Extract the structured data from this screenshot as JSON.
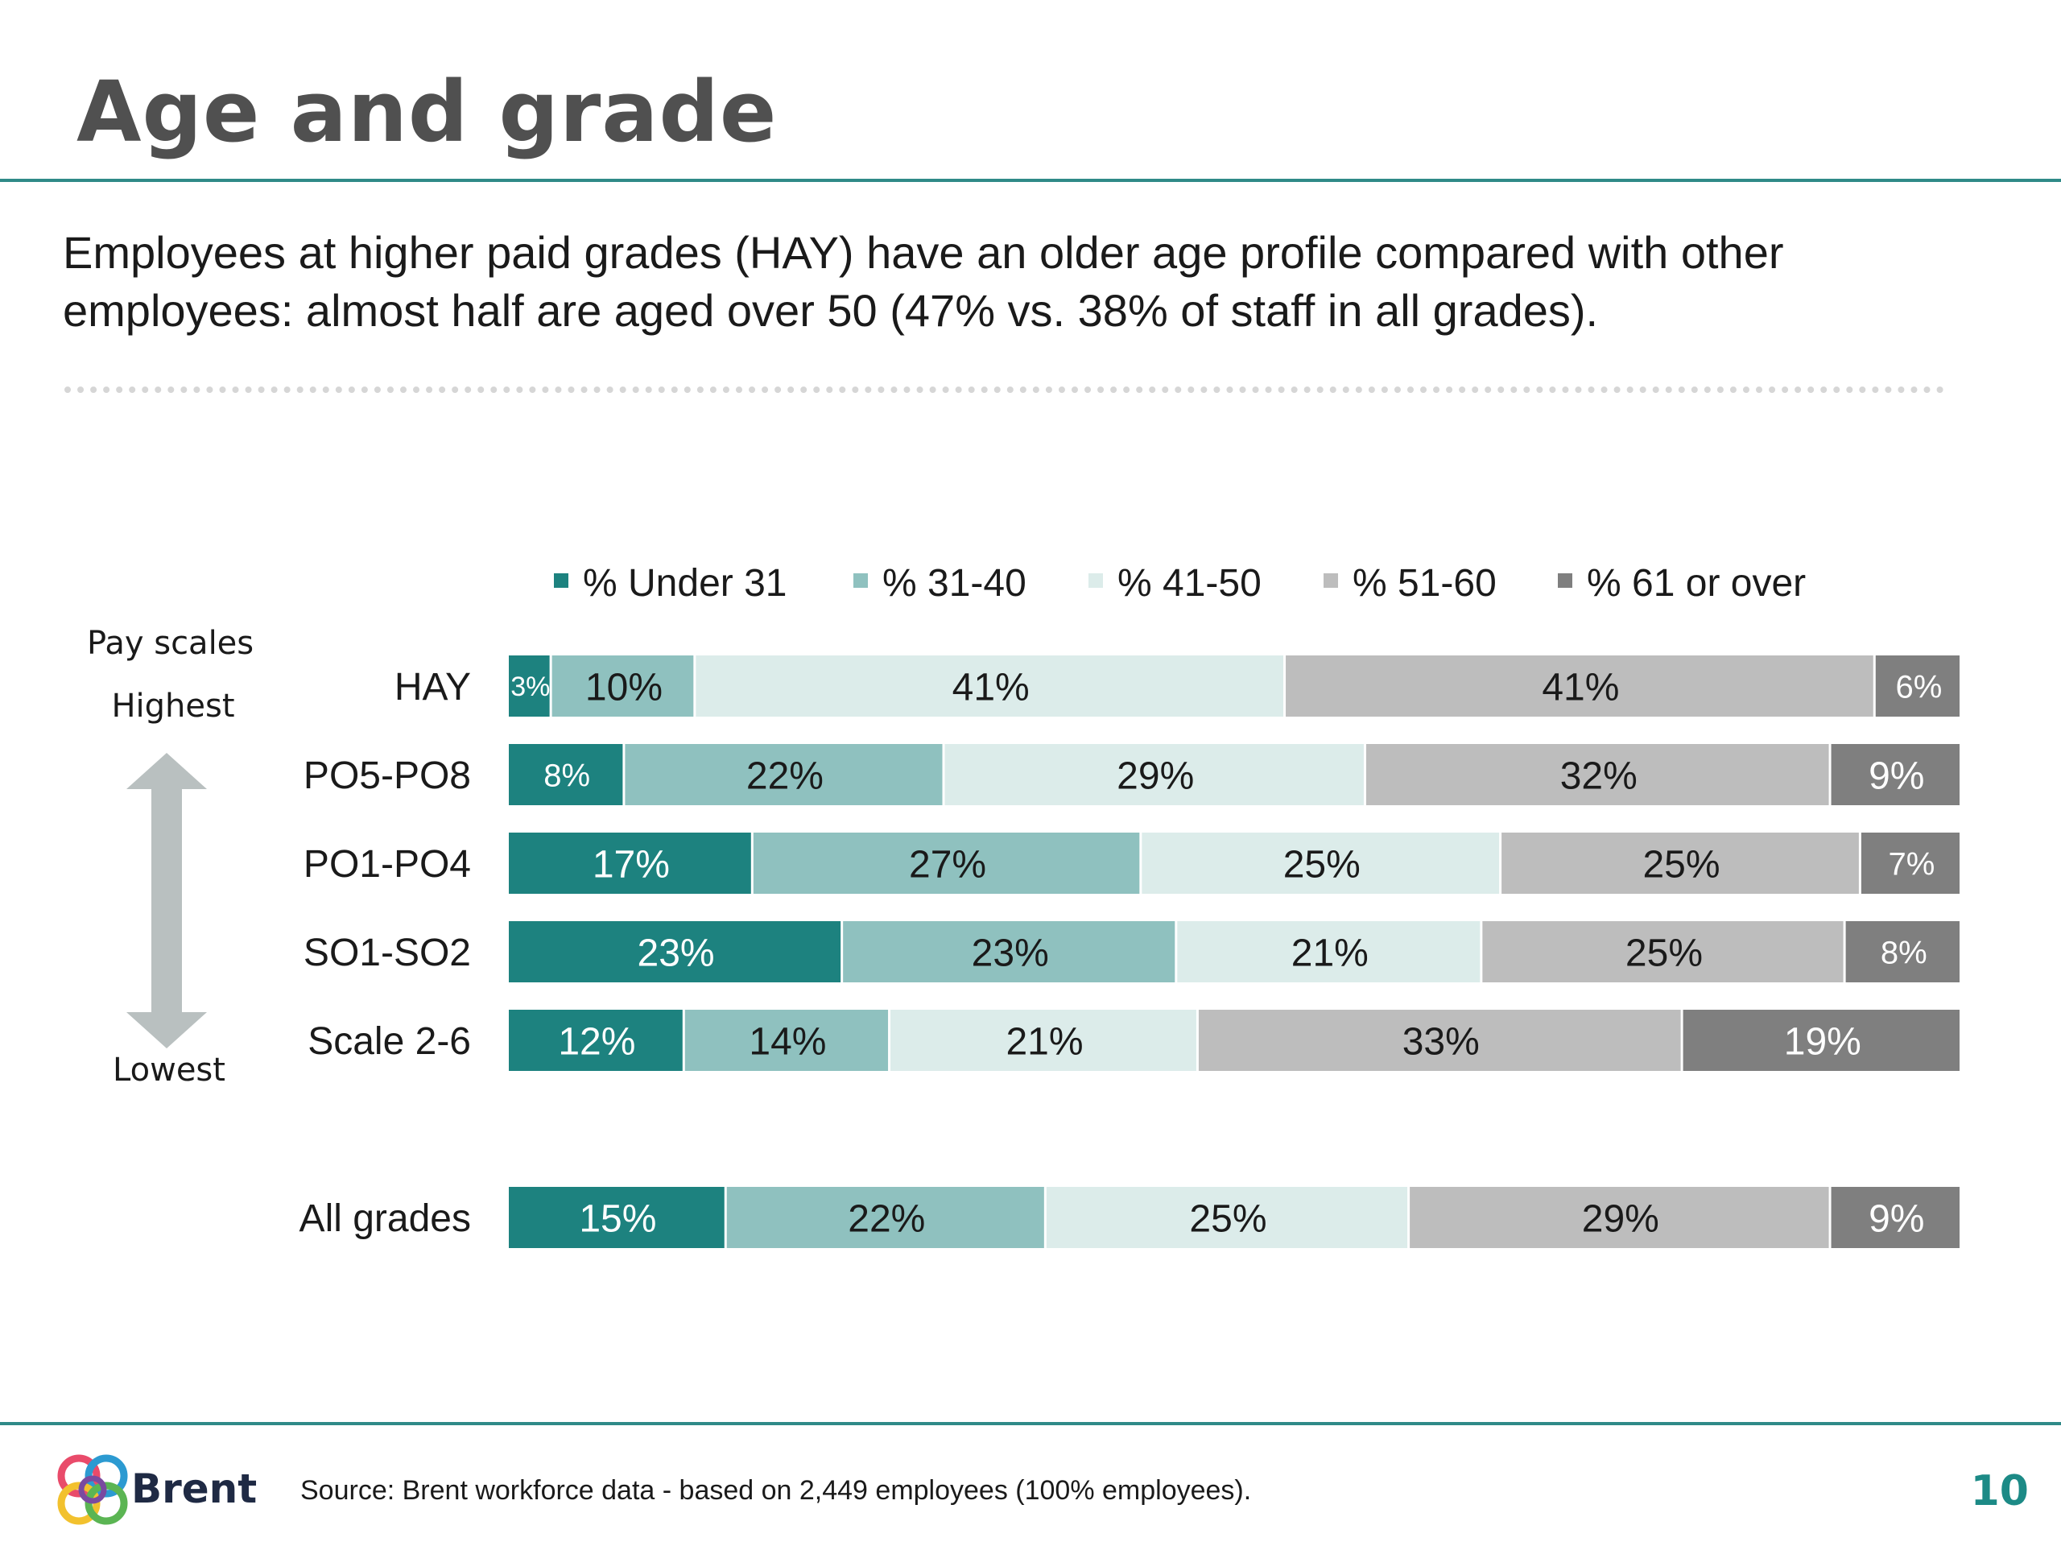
{
  "slide": {
    "title": "Age and grade",
    "subtitle": "Employees at higher paid grades (HAY) have an older age profile compared with other employees: almost half are aged over 50 (47% vs. 38% of staff in all grades).",
    "source": "Source: Brent workforce data - based on 2,449 employees (100% employees).",
    "page_number": "10",
    "brand": "Brent"
  },
  "axis_notes": {
    "heading": "Pay scales",
    "top": "Highest",
    "bottom": "Lowest"
  },
  "colors": {
    "accent": "#2f8a88",
    "arrow": "#b9c0c0"
  },
  "chart_data": {
    "type": "bar",
    "orientation": "horizontal",
    "stacked": true,
    "categories": [
      "HAY",
      "PO5-PO8",
      "PO1-PO4",
      "SO1-SO2",
      "Scale 2-6",
      "All grades"
    ],
    "series": [
      {
        "name": "% Under 31",
        "color": "#1d827f",
        "values": [
          3,
          8,
          17,
          23,
          12,
          15
        ],
        "labels": [
          "3%",
          "8%",
          "17%",
          "23%",
          "12%",
          "15%"
        ]
      },
      {
        "name": "% 31-40",
        "color": "#8fc1bf",
        "values": [
          10,
          22,
          27,
          23,
          14,
          22
        ],
        "labels": [
          "10%",
          "22%",
          "27%",
          "23%",
          "14%",
          "22%"
        ]
      },
      {
        "name": "% 41-50",
        "color": "#dcecea",
        "values": [
          41,
          29,
          25,
          21,
          21,
          25
        ],
        "labels": [
          "41%",
          "29%",
          "25%",
          "21%",
          "21%",
          "25%"
        ]
      },
      {
        "name": "% 51-60",
        "color": "#bdbdbd",
        "values": [
          41,
          32,
          25,
          25,
          33,
          29
        ],
        "labels": [
          "41%",
          "32%",
          "25%",
          "25%",
          "33%",
          "29%"
        ]
      },
      {
        "name": "% 61 or over",
        "color": "#7f7f7f",
        "values": [
          6,
          9,
          7,
          8,
          19,
          9
        ],
        "labels": [
          "6%",
          "9%",
          "7%",
          "8%",
          "19%",
          "9%"
        ]
      }
    ],
    "xlim": [
      0,
      100
    ],
    "legend": "top",
    "grid": false
  }
}
